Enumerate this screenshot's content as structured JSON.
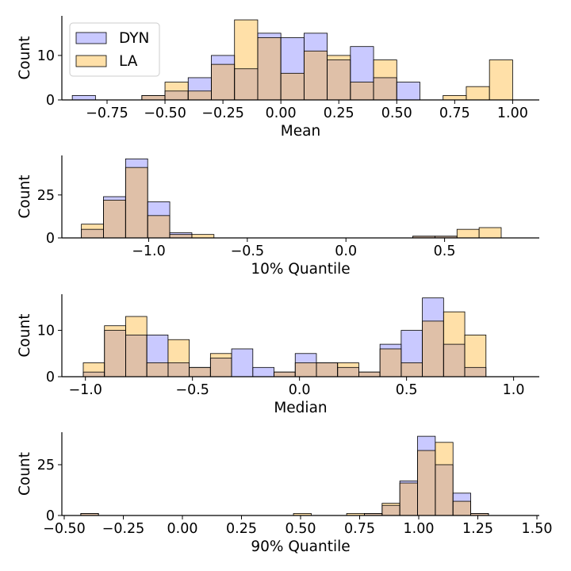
{
  "colors": {
    "dyn": "#7f7fff",
    "la": "#ffb52f",
    "overlap": "#cba396",
    "edge": "#000000"
  },
  "legend": {
    "placement": "top-left",
    "items": [
      "DYN",
      "LA"
    ]
  },
  "chart_data": [
    {
      "type": "bar",
      "xlabel": "Mean",
      "ylabel": "Count",
      "xlim": [
        -0.945,
        1.115
      ],
      "ylim": [
        0,
        18.9
      ],
      "xticks": [
        -0.75,
        -0.5,
        -0.25,
        0.0,
        0.25,
        0.5,
        0.75,
        1.0
      ],
      "xtick_labels": [
        "−0.75",
        "−0.50",
        "−0.25",
        "0.00",
        "0.25",
        "0.50",
        "0.75",
        "1.00"
      ],
      "yticks": [
        0,
        10
      ],
      "ytick_labels": [
        "0",
        "10"
      ],
      "bin_edges": [
        -0.9,
        -0.8,
        -0.7,
        -0.6,
        -0.5,
        -0.4,
        -0.3,
        -0.2,
        -0.1,
        0.0,
        0.1,
        0.2,
        0.3,
        0.4,
        0.5,
        0.6,
        0.7,
        0.8,
        0.9,
        1.0
      ],
      "series": [
        {
          "name": "DYN",
          "values": [
            1,
            0,
            0,
            1,
            2,
            5,
            10,
            7,
            15,
            14,
            15,
            9,
            12,
            5,
            4,
            0,
            0,
            0,
            0
          ]
        },
        {
          "name": "LA",
          "values": [
            0,
            0,
            0,
            1,
            4,
            2,
            8,
            18,
            14,
            6,
            11,
            10,
            4,
            9,
            0,
            0,
            1,
            3,
            9
          ]
        }
      ]
    },
    {
      "type": "bar",
      "xlabel": "10% Quantile",
      "ylabel": "Count",
      "xlim": [
        -1.44,
        0.98
      ],
      "ylim": [
        0,
        48
      ],
      "xticks": [
        -1.0,
        -0.5,
        0.0,
        0.5
      ],
      "xtick_labels": [
        "−1.0",
        "−0.5",
        "0.0",
        "0.5"
      ],
      "yticks": [
        0,
        25
      ],
      "ytick_labels": [
        "0",
        "25"
      ],
      "bin_edges": [
        -1.341,
        -1.229,
        -1.117,
        -1.005,
        -0.893,
        -0.781,
        -0.669,
        -0.557,
        -0.445,
        -0.333,
        -0.221,
        -0.109,
        0.003,
        0.115,
        0.227,
        0.339,
        0.451,
        0.563,
        0.675,
        0.787
      ],
      "series": [
        {
          "name": "DYN",
          "values": [
            5,
            24,
            46,
            21,
            3,
            0,
            0,
            0,
            0,
            0,
            0,
            0,
            0,
            0,
            0,
            1,
            1,
            0,
            0
          ]
        },
        {
          "name": "LA",
          "values": [
            8,
            22,
            41,
            13,
            2,
            2,
            0,
            0,
            0,
            0,
            0,
            0,
            0,
            0,
            0,
            1,
            1,
            5,
            6
          ]
        }
      ]
    },
    {
      "type": "bar",
      "xlabel": "Median",
      "ylabel": "Count",
      "xlim": [
        -1.11,
        1.12
      ],
      "ylim": [
        0,
        17.8
      ],
      "xticks": [
        -1.0,
        -0.5,
        0.0,
        0.5,
        1.0
      ],
      "xtick_labels": [
        "−1.0",
        "−0.5",
        "0.0",
        "0.5",
        "1.0"
      ],
      "yticks": [
        0,
        10
      ],
      "ytick_labels": [
        "0",
        "10"
      ],
      "bin_edges": [
        -1.01,
        -0.911,
        -0.812,
        -0.713,
        -0.614,
        -0.515,
        -0.416,
        -0.317,
        -0.218,
        -0.119,
        -0.02,
        0.079,
        0.178,
        0.277,
        0.376,
        0.475,
        0.574,
        0.673,
        0.772,
        0.871,
        0.97
      ],
      "series": [
        {
          "name": "DYN",
          "values": [
            1,
            10,
            9,
            9,
            3,
            2,
            4,
            6,
            2,
            1,
            5,
            3,
            2,
            1,
            7,
            10,
            17,
            7,
            2,
            0
          ]
        },
        {
          "name": "LA",
          "values": [
            3,
            11,
            13,
            3,
            8,
            2,
            5,
            0,
            0,
            1,
            3,
            3,
            3,
            1,
            6,
            3,
            12,
            14,
            9,
            0
          ]
        }
      ]
    },
    {
      "type": "bar",
      "xlabel": "90% Quantile",
      "ylabel": "Count",
      "xlim": [
        -0.51,
        1.51
      ],
      "ylim": [
        0,
        41
      ],
      "xticks": [
        -0.5,
        -0.25,
        0.0,
        0.25,
        0.5,
        0.75,
        1.0,
        1.25,
        1.5
      ],
      "xtick_labels": [
        "−0.50",
        "−0.25",
        "0.00",
        "0.25",
        "0.50",
        "0.75",
        "1.00",
        "1.25",
        "1.50"
      ],
      "yticks": [
        0,
        25
      ],
      "ytick_labels": [
        "0",
        "25"
      ],
      "bin_edges": [
        -0.43,
        -0.355,
        -0.28,
        -0.205,
        -0.13,
        -0.055,
        0.02,
        0.095,
        0.17,
        0.245,
        0.32,
        0.395,
        0.47,
        0.545,
        0.62,
        0.695,
        0.77,
        0.845,
        0.92,
        0.995,
        1.07,
        1.145,
        1.22,
        1.295,
        1.37
      ],
      "series": [
        {
          "name": "DYN",
          "values": [
            1,
            0,
            0,
            0,
            0,
            0,
            0,
            0,
            0,
            0,
            0,
            0,
            0,
            0,
            0,
            0,
            1,
            5,
            17,
            39,
            25,
            11,
            1,
            0
          ]
        },
        {
          "name": "LA",
          "values": [
            1,
            0,
            0,
            0,
            0,
            0,
            0,
            0,
            0,
            0,
            0,
            0,
            1,
            0,
            0,
            1,
            1,
            6,
            16,
            32,
            36,
            7,
            1,
            0
          ]
        }
      ]
    }
  ]
}
